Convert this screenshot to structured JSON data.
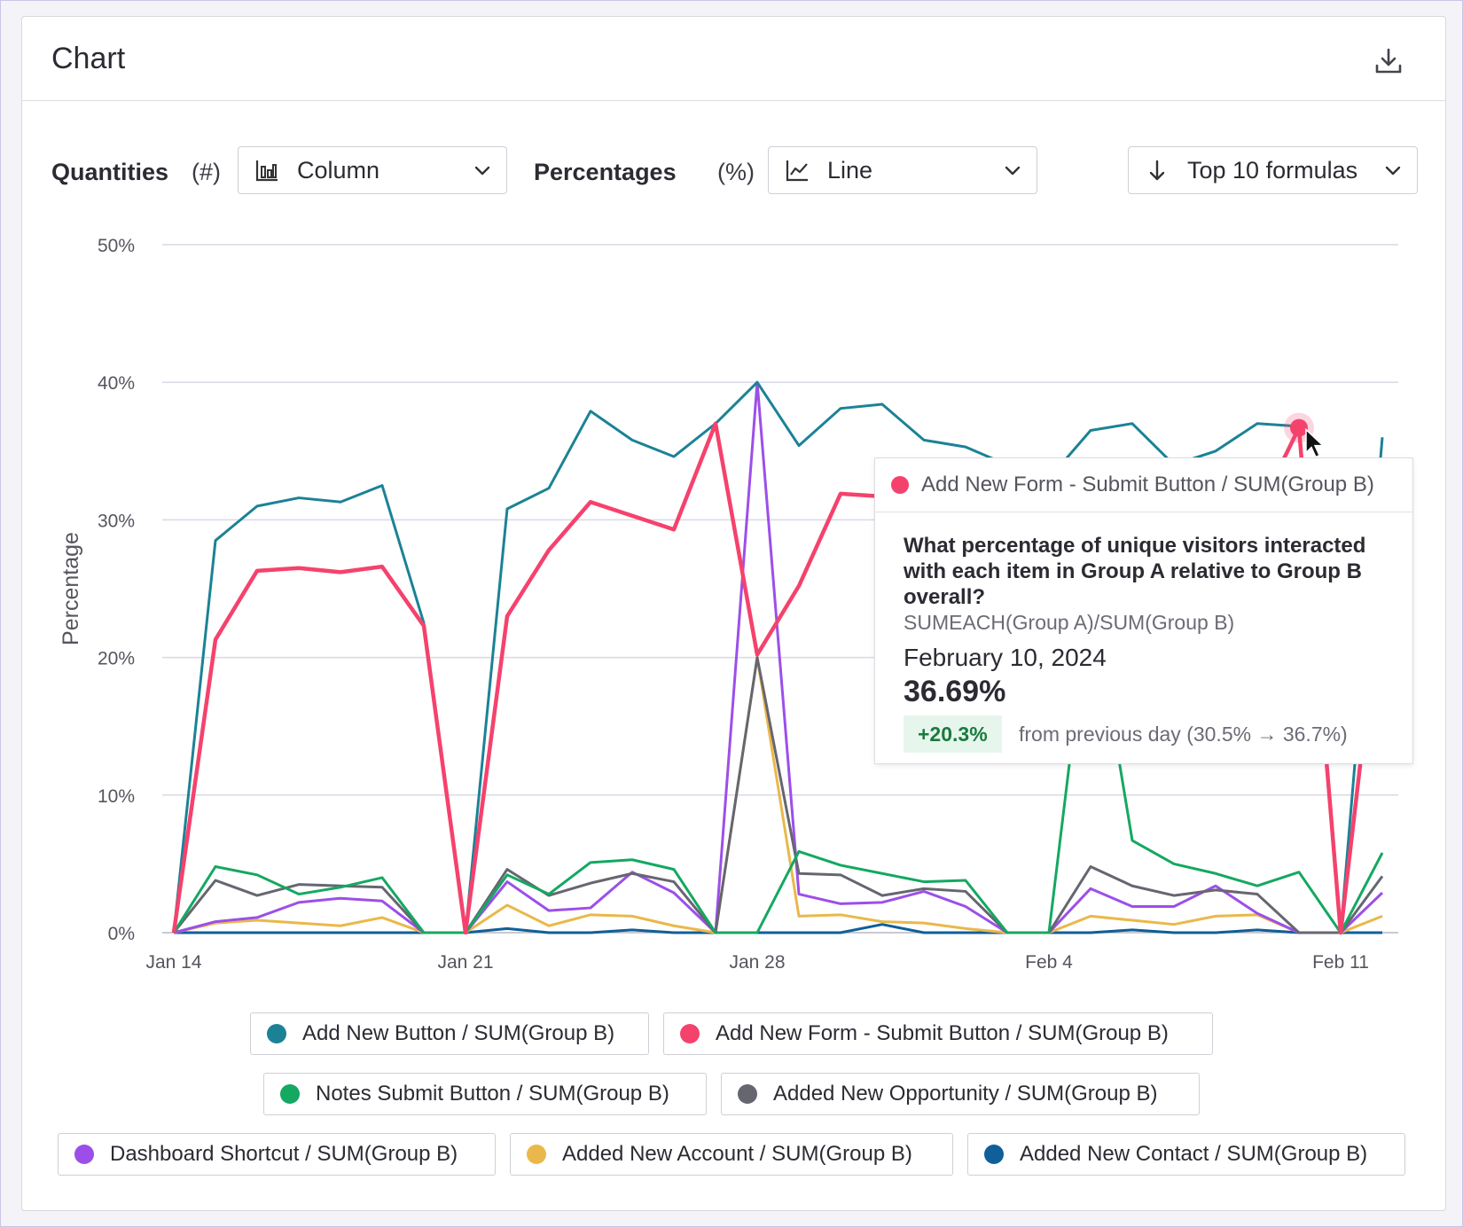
{
  "card": {
    "title": "Chart",
    "download_icon": "download-icon"
  },
  "toolbar": {
    "quantities_label": "Quantities",
    "quantities_unit": "(#)",
    "quantities_select": "Column",
    "percentages_label": "Percentages",
    "percentages_unit": "(%)",
    "percentages_select": "Line",
    "sort_select": "Top 10 formulas"
  },
  "chart_data": {
    "type": "line",
    "ylabel": "Percentage",
    "ylim": [
      0,
      50
    ],
    "yticks": [
      "0%",
      "10%",
      "20%",
      "30%",
      "40%",
      "50%"
    ],
    "xticks": [
      "Jan 14",
      "Jan 21",
      "Jan 28",
      "Feb 4",
      "Feb 11"
    ],
    "x": [
      "Jan 14",
      "Jan 15",
      "Jan 16",
      "Jan 17",
      "Jan 18",
      "Jan 19",
      "Jan 20",
      "Jan 21",
      "Jan 22",
      "Jan 23",
      "Jan 24",
      "Jan 25",
      "Jan 26",
      "Jan 27",
      "Jan 28",
      "Jan 29",
      "Jan 30",
      "Jan 31",
      "Feb 1",
      "Feb 2",
      "Feb 3",
      "Feb 4",
      "Feb 5",
      "Feb 6",
      "Feb 7",
      "Feb 8",
      "Feb 9",
      "Feb 10",
      "Feb 11",
      "Feb 12"
    ],
    "grid": true,
    "series": [
      {
        "name": "Add New Button / SUM(Group B)",
        "color": "#1b8296",
        "values": [
          0,
          28.5,
          31,
          31.6,
          31.3,
          32.5,
          22.5,
          0,
          30.8,
          32.3,
          37.9,
          35.8,
          34.6,
          37,
          40,
          35.4,
          38.1,
          38.4,
          35.8,
          35.3,
          34,
          33,
          36.5,
          37,
          34,
          35,
          37,
          36.8,
          0,
          36
        ]
      },
      {
        "name": "Add New Form - Submit Button / SUM(Group B)",
        "color": "#f5426d",
        "values": [
          0,
          21.3,
          26.3,
          26.5,
          26.2,
          26.6,
          22.3,
          0,
          23,
          27.8,
          31.3,
          30.3,
          29.3,
          37,
          20.2,
          25.2,
          31.9,
          31.7,
          31,
          30.5,
          29,
          28,
          30,
          31.2,
          30,
          30.5,
          30.5,
          36.69,
          0,
          26
        ]
      },
      {
        "name": "Notes Submit Button / SUM(Group B)",
        "color": "#14a861",
        "values": [
          0,
          4.8,
          4.2,
          2.8,
          3.3,
          4,
          0,
          0,
          4.2,
          2.8,
          5.1,
          5.3,
          4.6,
          0,
          0,
          5.9,
          4.9,
          4.3,
          3.7,
          3.8,
          0,
          0,
          25,
          6.7,
          5,
          4.3,
          3.4,
          4.4,
          0,
          5.8
        ]
      },
      {
        "name": "Added New Opportunity / SUM(Group B)",
        "color": "#666670",
        "values": [
          0,
          3.8,
          2.7,
          3.5,
          3.4,
          3.3,
          0,
          0,
          4.6,
          2.7,
          3.6,
          4.3,
          3.7,
          0,
          20,
          4.3,
          4.2,
          2.7,
          3.2,
          3,
          0,
          0,
          4.8,
          3.4,
          2.7,
          3.1,
          2.8,
          0,
          0,
          4.1
        ]
      },
      {
        "name": "Dashboard Shortcut / SUM(Group B)",
        "color": "#9c4fe8",
        "values": [
          0,
          0.8,
          1.1,
          2.2,
          2.5,
          2.3,
          0,
          0,
          3.7,
          1.6,
          1.8,
          4.4,
          2.9,
          0,
          40,
          2.8,
          2.1,
          2.2,
          3,
          1.9,
          0,
          0,
          3.2,
          1.9,
          1.9,
          3.4,
          1.4,
          0,
          0,
          2.9
        ]
      },
      {
        "name": "Added New Account / SUM(Group B)",
        "color": "#eab84a",
        "values": [
          0,
          0.7,
          0.9,
          0.7,
          0.5,
          1.1,
          0,
          0,
          2,
          0.5,
          1.3,
          1.2,
          0.5,
          0,
          20,
          1.2,
          1.3,
          0.8,
          0.7,
          0.3,
          0,
          0,
          1.2,
          0.9,
          0.6,
          1.2,
          1.3,
          0,
          0,
          1.2
        ]
      },
      {
        "name": "Added New Contact / SUM(Group B)",
        "color": "#0f5f99",
        "values": [
          0,
          0,
          0,
          0,
          0,
          0,
          0,
          0,
          0.3,
          0,
          0,
          0.2,
          0,
          0,
          0,
          0,
          0,
          0.6,
          0,
          0,
          0,
          0,
          0,
          0.2,
          0,
          0,
          0.2,
          0,
          0,
          0
        ]
      }
    ],
    "highlight": {
      "series": "Add New Form - Submit Button / SUM(Group B)",
      "x": "Feb 10",
      "value": 36.69
    }
  },
  "tooltip": {
    "series_name": "Add New Form - Submit Button / SUM(Group B)",
    "series_color": "#f5426d",
    "question": "What percentage of unique visitors interacted with each item in Group A relative to Group B overall?",
    "formula": "SUMEACH(Group A)/SUM(Group B)",
    "date": "February 10, 2024",
    "value": "36.69%",
    "change": "+20.3%",
    "change_detail": "from previous day (30.5% → 36.7%)"
  },
  "legend": [
    {
      "label": "Add New Button / SUM(Group B)",
      "color": "#1b8296"
    },
    {
      "label": "Add New Form - Submit Button / SUM(Group B)",
      "color": "#f5426d"
    },
    {
      "label": "Notes Submit Button / SUM(Group B)",
      "color": "#14a861"
    },
    {
      "label": "Added New Opportunity / SUM(Group B)",
      "color": "#666670"
    },
    {
      "label": "Dashboard Shortcut / SUM(Group B)",
      "color": "#9c4fe8"
    },
    {
      "label": "Added New Account / SUM(Group B)",
      "color": "#eab84a"
    },
    {
      "label": "Added New Contact / SUM(Group B)",
      "color": "#0f5f99"
    }
  ]
}
